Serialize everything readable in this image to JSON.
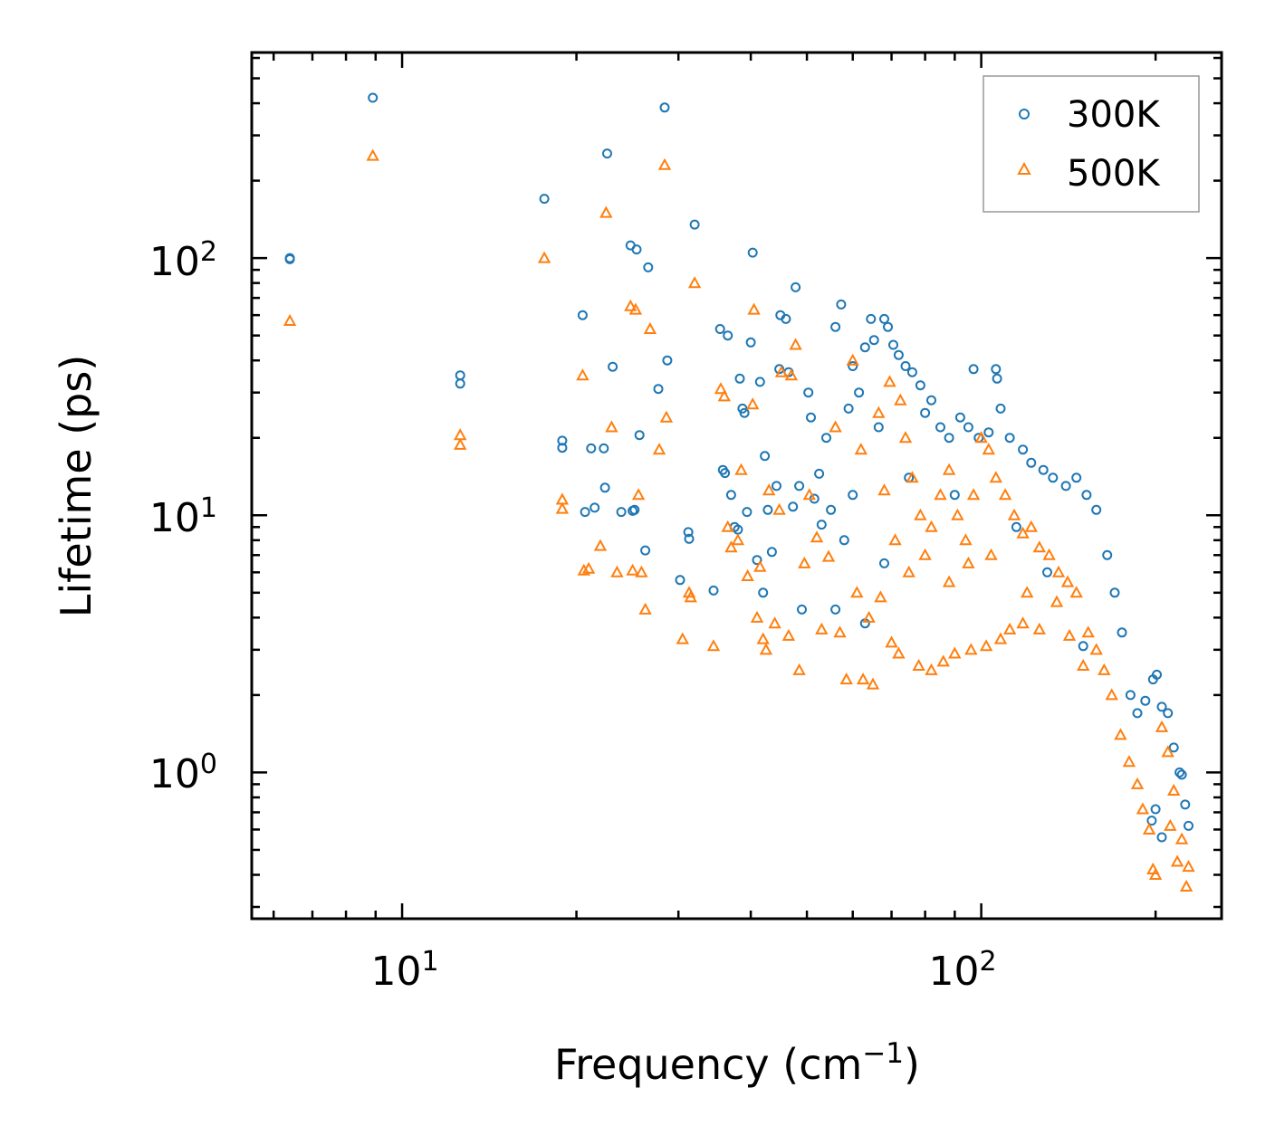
{
  "chart_data": {
    "type": "scatter",
    "xscale": "log",
    "yscale": "log",
    "xlim": [
      5.5,
      260
    ],
    "ylim": [
      0.27,
      630
    ],
    "xlabel": "Frequency (cm",
    "xlabel_sup": "−1",
    "xlabel_end": ")",
    "ylabel": "Lifetime (ps)",
    "xticks": [
      {
        "value": 10,
        "base": "10",
        "exp": "1"
      },
      {
        "value": 100,
        "base": "10",
        "exp": "2"
      }
    ],
    "yticks": [
      {
        "value": 1,
        "base": "10",
        "exp": "0"
      },
      {
        "value": 10,
        "base": "10",
        "exp": "1"
      },
      {
        "value": 100,
        "base": "10",
        "exp": "2"
      }
    ],
    "legend": {
      "position": "top-right"
    },
    "series": [
      {
        "name": "300K",
        "marker": "circle",
        "color": "#1f77b4",
        "points": [
          [
            6.4,
            99
          ],
          [
            6.4,
            100
          ],
          [
            8.9,
            420
          ],
          [
            12.6,
            35
          ],
          [
            12.6,
            32.5
          ],
          [
            17.6,
            170
          ],
          [
            18.9,
            19.5
          ],
          [
            18.9,
            18.3
          ],
          [
            20.5,
            60
          ],
          [
            20.7,
            10.3
          ],
          [
            21.2,
            18.2
          ],
          [
            21.5,
            10.7
          ],
          [
            22.3,
            18.2
          ],
          [
            22.4,
            12.8
          ],
          [
            22.6,
            255
          ],
          [
            23.1,
            37.8
          ],
          [
            23.9,
            10.3
          ],
          [
            24.8,
            112
          ],
          [
            25.0,
            10.4
          ],
          [
            25.2,
            10.5
          ],
          [
            25.4,
            108
          ],
          [
            25.7,
            20.5
          ],
          [
            26.3,
            7.3
          ],
          [
            26.6,
            92
          ],
          [
            27.7,
            31
          ],
          [
            28.4,
            385
          ],
          [
            28.7,
            40
          ],
          [
            30.2,
            5.6
          ],
          [
            31.2,
            8.6
          ],
          [
            31.3,
            8.1
          ],
          [
            32.0,
            135
          ],
          [
            34.5,
            5.1
          ],
          [
            35.4,
            53
          ],
          [
            35.8,
            15
          ],
          [
            36.1,
            14.6
          ],
          [
            36.5,
            50
          ],
          [
            37.0,
            12
          ],
          [
            37.5,
            9.0
          ],
          [
            38.0,
            8.8
          ],
          [
            38.3,
            34
          ],
          [
            38.7,
            26
          ],
          [
            39.0,
            25
          ],
          [
            39.4,
            10.3
          ],
          [
            40.0,
            47
          ],
          [
            40.3,
            105
          ],
          [
            41.0,
            6.7
          ],
          [
            41.5,
            33
          ],
          [
            42.0,
            5.0
          ],
          [
            42.3,
            17
          ],
          [
            42.8,
            10.5
          ],
          [
            43.5,
            7.2
          ],
          [
            44.3,
            13
          ],
          [
            44.8,
            37
          ],
          [
            45.0,
            60
          ],
          [
            46.0,
            58
          ],
          [
            46.5,
            36
          ],
          [
            47.3,
            10.8
          ],
          [
            47.8,
            77
          ],
          [
            48.5,
            13
          ],
          [
            49.0,
            4.3
          ],
          [
            50.3,
            30
          ],
          [
            50.8,
            24
          ],
          [
            51.5,
            11.6
          ],
          [
            52.5,
            14.5
          ],
          [
            53.0,
            9.2
          ],
          [
            54.0,
            20
          ],
          [
            55.0,
            10.5
          ],
          [
            56.0,
            54
          ],
          [
            57.3,
            66
          ],
          [
            58.0,
            8.0
          ],
          [
            59.0,
            26
          ],
          [
            60.0,
            38
          ],
          [
            61.5,
            30
          ],
          [
            63.0,
            45
          ],
          [
            64.5,
            58
          ],
          [
            65.3,
            48
          ],
          [
            66.5,
            22
          ],
          [
            68.0,
            58
          ],
          [
            69.0,
            54
          ],
          [
            70.5,
            46
          ],
          [
            72.0,
            42
          ],
          [
            74.0,
            38
          ],
          [
            76.0,
            36
          ],
          [
            78.5,
            32
          ],
          [
            80.0,
            25
          ],
          [
            82.0,
            28
          ],
          [
            85.0,
            22
          ],
          [
            88.0,
            20
          ],
          [
            92.0,
            24
          ],
          [
            95.0,
            22
          ],
          [
            97.0,
            37
          ],
          [
            99.0,
            20
          ],
          [
            103.0,
            21
          ],
          [
            106.0,
            37
          ],
          [
            106.5,
            34
          ],
          [
            108.0,
            26
          ],
          [
            112.0,
            20
          ],
          [
            118.0,
            18
          ],
          [
            122.0,
            16
          ],
          [
            128.0,
            15
          ],
          [
            133.0,
            14
          ],
          [
            140.0,
            13
          ],
          [
            146.0,
            14
          ],
          [
            152.0,
            12
          ],
          [
            158.0,
            10.5
          ],
          [
            165.0,
            7.0
          ],
          [
            170.0,
            5.0
          ],
          [
            175.0,
            3.5
          ],
          [
            181.0,
            2.0
          ],
          [
            186.0,
            1.7
          ],
          [
            192.0,
            1.9
          ],
          [
            198.0,
            2.3
          ],
          [
            201.0,
            2.4
          ],
          [
            205.0,
            1.8
          ],
          [
            210.0,
            1.7
          ],
          [
            215.0,
            1.25
          ],
          [
            220.0,
            1.0
          ],
          [
            225.0,
            0.75
          ],
          [
            228.0,
            0.62
          ],
          [
            222.0,
            0.98
          ],
          [
            205.0,
            0.56
          ],
          [
            200.0,
            0.72
          ],
          [
            197.0,
            0.65
          ],
          [
            150.0,
            3.1
          ],
          [
            130.0,
            6.0
          ],
          [
            115.0,
            9.0
          ],
          [
            90.0,
            12.0
          ],
          [
            75.0,
            14.0
          ],
          [
            68.0,
            6.5
          ],
          [
            60.0,
            12.0
          ],
          [
            56.0,
            4.3
          ],
          [
            63.0,
            3.8
          ]
        ]
      },
      {
        "name": "500K",
        "marker": "triangle",
        "color": "#ff7f0e",
        "points": [
          [
            6.4,
            57
          ],
          [
            8.9,
            250
          ],
          [
            12.6,
            20.5
          ],
          [
            12.6,
            18.8
          ],
          [
            17.6,
            100
          ],
          [
            18.9,
            11.5
          ],
          [
            18.9,
            10.6
          ],
          [
            20.5,
            35
          ],
          [
            20.6,
            6.1
          ],
          [
            21.0,
            6.2
          ],
          [
            22.0,
            7.6
          ],
          [
            22.5,
            150
          ],
          [
            23.0,
            22
          ],
          [
            23.5,
            6.0
          ],
          [
            24.8,
            65
          ],
          [
            25.0,
            6.1
          ],
          [
            25.3,
            63
          ],
          [
            25.6,
            12
          ],
          [
            25.9,
            6.0
          ],
          [
            26.3,
            4.3
          ],
          [
            26.8,
            53
          ],
          [
            27.8,
            18
          ],
          [
            28.4,
            230
          ],
          [
            28.6,
            24
          ],
          [
            30.5,
            3.3
          ],
          [
            31.3,
            5.0
          ],
          [
            31.5,
            4.8
          ],
          [
            32.0,
            80
          ],
          [
            34.5,
            3.1
          ],
          [
            35.5,
            31
          ],
          [
            36.0,
            29
          ],
          [
            36.5,
            9.0
          ],
          [
            37.0,
            7.5
          ],
          [
            38.0,
            8.0
          ],
          [
            38.5,
            15
          ],
          [
            39.5,
            5.8
          ],
          [
            40.3,
            27
          ],
          [
            40.5,
            63
          ],
          [
            41.0,
            4.0
          ],
          [
            41.5,
            6.3
          ],
          [
            42.0,
            3.3
          ],
          [
            42.5,
            3.0
          ],
          [
            43.0,
            12.5
          ],
          [
            44.0,
            3.8
          ],
          [
            44.8,
            10.5
          ],
          [
            45.2,
            36
          ],
          [
            46.5,
            3.4
          ],
          [
            47.0,
            35
          ],
          [
            47.8,
            46
          ],
          [
            48.5,
            2.5
          ],
          [
            49.5,
            6.5
          ],
          [
            50.5,
            12
          ],
          [
            52.0,
            8.2
          ],
          [
            53.0,
            3.6
          ],
          [
            54.5,
            6.9
          ],
          [
            56.0,
            22
          ],
          [
            57.0,
            3.5
          ],
          [
            58.5,
            2.3
          ],
          [
            60.0,
            40
          ],
          [
            61.0,
            5.0
          ],
          [
            62.5,
            2.3
          ],
          [
            64.0,
            4.0
          ],
          [
            65.0,
            2.2
          ],
          [
            66.5,
            25
          ],
          [
            68.0,
            12.5
          ],
          [
            69.5,
            33
          ],
          [
            71.0,
            8
          ],
          [
            72.5,
            28
          ],
          [
            74.0,
            20
          ],
          [
            76.0,
            14
          ],
          [
            78.5,
            10
          ],
          [
            80.0,
            7
          ],
          [
            82.0,
            9
          ],
          [
            85.0,
            12
          ],
          [
            88.0,
            15
          ],
          [
            91.0,
            10
          ],
          [
            94.0,
            8
          ],
          [
            97.0,
            12
          ],
          [
            100.0,
            20
          ],
          [
            103.0,
            18
          ],
          [
            106.0,
            14
          ],
          [
            110.0,
            12
          ],
          [
            114.0,
            10
          ],
          [
            118.0,
            8.5
          ],
          [
            122.0,
            9.0
          ],
          [
            126.0,
            7.5
          ],
          [
            131.0,
            7.0
          ],
          [
            136.0,
            6.0
          ],
          [
            141.0,
            5.5
          ],
          [
            146.0,
            5.0
          ],
          [
            150.0,
            2.6
          ],
          [
            153.0,
            3.5
          ],
          [
            158.0,
            3.0
          ],
          [
            163.0,
            2.5
          ],
          [
            168.0,
            2.0
          ],
          [
            174.0,
            1.4
          ],
          [
            180.0,
            1.1
          ],
          [
            186.0,
            0.9
          ],
          [
            190.0,
            0.72
          ],
          [
            195.0,
            0.6
          ],
          [
            198.0,
            0.42
          ],
          [
            200.0,
            0.4
          ],
          [
            205.0,
            1.5
          ],
          [
            210.0,
            1.2
          ],
          [
            215.0,
            0.85
          ],
          [
            218.0,
            0.45
          ],
          [
            222.0,
            0.55
          ],
          [
            226.0,
            0.36
          ],
          [
            228.0,
            0.43
          ],
          [
            212.0,
            0.62
          ],
          [
            70.0,
            3.2
          ],
          [
            72.0,
            2.9
          ],
          [
            78.0,
            2.6
          ],
          [
            82.0,
            2.5
          ],
          [
            86.0,
            2.7
          ],
          [
            90.0,
            2.9
          ],
          [
            96.0,
            3.0
          ],
          [
            102.0,
            3.1
          ],
          [
            108.0,
            3.3
          ],
          [
            112.0,
            3.6
          ],
          [
            118.0,
            3.8
          ],
          [
            126.0,
            3.6
          ],
          [
            62.0,
            18
          ],
          [
            67.0,
            4.8
          ],
          [
            75.0,
            6.0
          ],
          [
            88.0,
            5.5
          ],
          [
            95.0,
            6.5
          ],
          [
            104.0,
            7.0
          ],
          [
            120.0,
            5.0
          ],
          [
            135.0,
            4.6
          ],
          [
            142.0,
            3.4
          ]
        ]
      }
    ]
  }
}
